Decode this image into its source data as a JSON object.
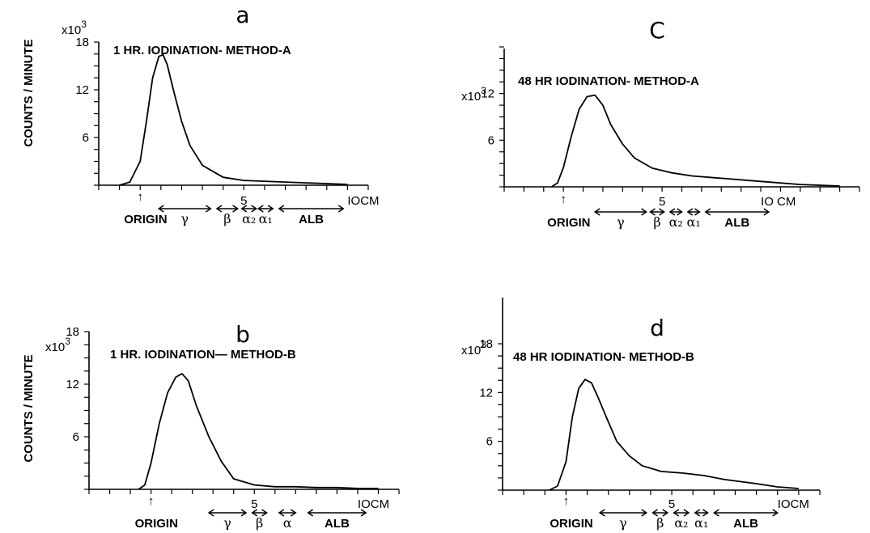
{
  "figure": {
    "ylabel": "COUNTS / MINUTE",
    "yscale_label_base": "x10",
    "yscale_label_exp": "3"
  },
  "chart_data": [
    {
      "type": "line",
      "letter": "a",
      "title": "1 HR. IODINATION- METHOD-A",
      "ylabel": "COUNTS / MINUTE",
      "yscale": "x10^3",
      "yticks": [
        "6",
        "12",
        "18"
      ],
      "ylim": [
        0,
        18
      ],
      "xtick_labels": [
        "5",
        "IOCM"
      ],
      "xlim": [
        -2,
        11
      ],
      "origin_marker": "↑",
      "origin_label": "ORIGIN",
      "bands": [
        {
          "label": "γ",
          "from": 0.9,
          "to": 3.4
        },
        {
          "label": "β",
          "from": 3.7,
          "to": 4.7
        },
        {
          "label": "α₂",
          "from": 4.9,
          "to": 5.6
        },
        {
          "label": "α₁",
          "from": 5.7,
          "to": 6.4
        },
        {
          "label": "ALB",
          "from": 6.7,
          "to": 9.8
        }
      ],
      "series": [
        {
          "x": [
            -1.0,
            -0.5,
            0.0,
            0.3,
            0.6,
            0.9,
            1.1,
            1.3,
            1.6,
            2.0,
            2.4,
            3.0,
            4.0,
            5.0,
            6.0,
            7.0,
            8.0,
            9.0,
            10.0
          ],
          "values": [
            0,
            0.4,
            3.0,
            8.0,
            13.5,
            16.2,
            16.4,
            15.2,
            12.0,
            8.0,
            5.0,
            2.5,
            1.0,
            0.6,
            0.5,
            0.4,
            0.3,
            0.2,
            0.1
          ]
        }
      ]
    },
    {
      "type": "line",
      "letter": "b",
      "title": "1 HR. IODINATION— METHOD-B",
      "ylabel": "COUNTS / MINUTE",
      "yscale": "x10^3",
      "yticks": [
        "6",
        "12",
        "18"
      ],
      "ylim": [
        0,
        18
      ],
      "xtick_labels": [
        "5",
        "IOCM"
      ],
      "xlim": [
        -3,
        12
      ],
      "origin_marker": "↑",
      "origin_label": "ORIGIN",
      "bands": [
        {
          "label": "γ",
          "from": 2.8,
          "to": 4.6
        },
        {
          "label": "β",
          "from": 4.9,
          "to": 5.6
        },
        {
          "label": "α",
          "from": 6.2,
          "to": 7.0
        },
        {
          "label": "ALB",
          "from": 7.6,
          "to": 10.4
        }
      ],
      "series": [
        {
          "x": [
            -0.6,
            -0.3,
            0.0,
            0.4,
            0.8,
            1.2,
            1.5,
            1.8,
            2.2,
            2.8,
            3.4,
            4.0,
            5.0,
            6.0,
            7.0,
            8.0,
            9.0,
            10.0,
            11.0
          ],
          "values": [
            0,
            0.5,
            3.0,
            7.5,
            11.0,
            12.8,
            13.2,
            12.4,
            9.5,
            6.0,
            3.2,
            1.2,
            0.5,
            0.3,
            0.3,
            0.2,
            0.2,
            0.1,
            0.1
          ]
        }
      ]
    },
    {
      "type": "line",
      "letter": "C",
      "title": "48 HR IODINATION- METHOD-A",
      "ylabel": "",
      "yscale": "x10^3",
      "yticks": [
        "6",
        "12"
      ],
      "ylim": [
        0,
        18
      ],
      "xtick_labels": [
        "5",
        "IO CM"
      ],
      "xlim": [
        -3,
        15
      ],
      "origin_marker": "↑",
      "origin_label": "ORIGIN",
      "bands": [
        {
          "label": "γ",
          "from": 1.6,
          "to": 4.2
        },
        {
          "label": "β",
          "from": 4.4,
          "to": 5.1
        },
        {
          "label": "α₂",
          "from": 5.4,
          "to": 6.0
        },
        {
          "label": "α₁",
          "from": 6.3,
          "to": 6.9
        },
        {
          "label": "ALB",
          "from": 7.2,
          "to": 10.4
        }
      ],
      "series": [
        {
          "x": [
            -0.6,
            -0.3,
            0.0,
            0.4,
            0.8,
            1.2,
            1.6,
            2.0,
            2.4,
            3.0,
            3.6,
            4.5,
            5.5,
            6.5,
            8.0,
            10.0,
            12.0,
            14.0
          ],
          "values": [
            0,
            0.5,
            2.5,
            6.5,
            10.0,
            11.6,
            11.8,
            10.5,
            8.0,
            5.5,
            3.7,
            2.4,
            1.8,
            1.4,
            1.1,
            0.7,
            0.3,
            0.1
          ]
        }
      ]
    },
    {
      "type": "line",
      "letter": "d",
      "title": "48 HR IODINATION- METHOD-B",
      "ylabel": "",
      "yscale": "x10^3",
      "yticks": [
        "6",
        "12",
        "18"
      ],
      "ylim": [
        0,
        18
      ],
      "xtick_labels": [
        "5",
        "IOCM"
      ],
      "xlim": [
        -3,
        12
      ],
      "origin_marker": "↑",
      "origin_label": "ORIGIN",
      "bands": [
        {
          "label": "γ",
          "from": 1.6,
          "to": 3.8
        },
        {
          "label": "β",
          "from": 4.1,
          "to": 4.8
        },
        {
          "label": "α₂",
          "from": 5.1,
          "to": 5.8
        },
        {
          "label": "α₁",
          "from": 6.1,
          "to": 6.7
        },
        {
          "label": "ALB",
          "from": 7.0,
          "to": 10.0
        }
      ],
      "series": [
        {
          "x": [
            -0.8,
            -0.4,
            0.0,
            0.3,
            0.6,
            0.9,
            1.2,
            1.5,
            1.9,
            2.4,
            3.0,
            3.6,
            4.5,
            5.5,
            6.5,
            7.5,
            9.0,
            10.0,
            11.0
          ],
          "values": [
            0,
            0.5,
            3.5,
            9.0,
            12.5,
            13.6,
            13.2,
            11.5,
            9.0,
            6.0,
            4.2,
            3.0,
            2.3,
            2.1,
            1.8,
            1.3,
            0.8,
            0.4,
            0.2
          ]
        }
      ]
    }
  ]
}
